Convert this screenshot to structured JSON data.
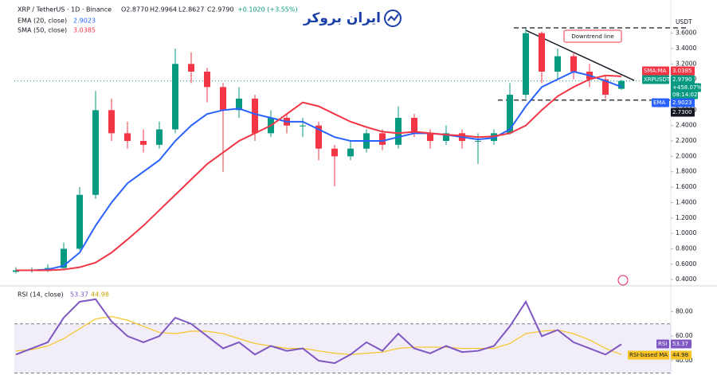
{
  "header": {
    "symbol": "XRP / TetherUS · 1D · Binance",
    "open": "O2.8770",
    "high": "H2.9964",
    "low": "L2.8627",
    "close": "C2.9790",
    "change": "+0.1020 (+3.55%)"
  },
  "logo": "ایران بروکر",
  "chart_data": [
    {
      "type": "candlestick",
      "currency": "USDT",
      "grid": false,
      "ylim": [
        0.36,
        3.72
      ],
      "yticks": [
        {
          "value": 0.4,
          "label": "0.4000"
        },
        {
          "value": 0.6,
          "label": "0.6000"
        },
        {
          "value": 0.8,
          "label": "0.8000"
        },
        {
          "value": 1.0,
          "label": "1.0000"
        },
        {
          "value": 1.2,
          "label": "1.2000"
        },
        {
          "value": 1.4,
          "label": "1.4000"
        },
        {
          "value": 1.6,
          "label": "1.6000"
        },
        {
          "value": 1.8,
          "label": "1.8000"
        },
        {
          "value": 2.0,
          "label": "2.0000"
        },
        {
          "value": 2.2,
          "label": "2.2000"
        },
        {
          "value": 2.4,
          "label": "2.4000"
        },
        {
          "value": 2.6,
          "label": "2.6000"
        },
        {
          "value": 2.8,
          "label": "2.8000"
        },
        {
          "value": 3.0,
          "label": "3.0000"
        },
        {
          "value": 3.2,
          "label": "3.2000"
        },
        {
          "value": 3.4,
          "label": "3.4000"
        },
        {
          "value": 3.6,
          "label": "3.6000"
        }
      ],
      "open": [
        0.5,
        0.52,
        0.52,
        0.55,
        0.8,
        1.5,
        2.6,
        2.3,
        2.2,
        2.15,
        2.35,
        3.2,
        3.1,
        2.9,
        2.6,
        2.75,
        2.3,
        2.5,
        2.4,
        2.4,
        2.1,
        2.0,
        2.1,
        2.3,
        2.15,
        2.5,
        2.3,
        2.2,
        2.3,
        2.2,
        2.2,
        2.3,
        2.8,
        3.6,
        3.1,
        3.3,
        3.1,
        3.0,
        2.877
      ],
      "high": [
        0.56,
        0.56,
        0.6,
        0.88,
        1.6,
        2.85,
        2.75,
        2.45,
        2.35,
        2.45,
        3.4,
        3.35,
        3.15,
        2.95,
        2.9,
        2.8,
        2.6,
        2.55,
        2.5,
        2.45,
        2.15,
        2.2,
        2.35,
        2.35,
        2.65,
        2.55,
        2.35,
        2.4,
        2.35,
        2.3,
        2.35,
        2.95,
        3.66,
        3.62,
        3.4,
        3.35,
        3.2,
        3.05,
        2.9964
      ],
      "low": [
        0.48,
        0.49,
        0.5,
        0.54,
        0.78,
        1.45,
        2.2,
        2.1,
        2.05,
        2.1,
        2.3,
        2.95,
        2.7,
        1.8,
        2.5,
        2.2,
        2.25,
        2.3,
        2.25,
        1.95,
        1.61,
        1.95,
        2.05,
        2.08,
        2.1,
        2.25,
        2.1,
        2.15,
        2.1,
        1.9,
        2.15,
        2.28,
        2.75,
        2.95,
        3.0,
        3.0,
        2.9,
        2.75,
        2.8627
      ],
      "close": [
        0.52,
        0.52,
        0.55,
        0.8,
        1.5,
        2.6,
        2.3,
        2.2,
        2.15,
        2.35,
        3.2,
        3.1,
        2.9,
        2.6,
        2.75,
        2.3,
        2.5,
        2.4,
        2.4,
        2.1,
        2.0,
        2.1,
        2.3,
        2.15,
        2.5,
        2.3,
        2.2,
        2.3,
        2.2,
        2.2,
        2.3,
        2.8,
        3.6,
        3.1,
        3.3,
        3.1,
        3.0,
        2.8,
        2.979
      ],
      "series": [
        {
          "name": "EMA (20, close)",
          "color": "#2962ff",
          "values": [
            0.52,
            0.52,
            0.53,
            0.58,
            0.75,
            1.1,
            1.4,
            1.65,
            1.8,
            1.95,
            2.2,
            2.4,
            2.55,
            2.6,
            2.62,
            2.55,
            2.5,
            2.45,
            2.45,
            2.35,
            2.25,
            2.2,
            2.2,
            2.2,
            2.25,
            2.3,
            2.3,
            2.28,
            2.25,
            2.22,
            2.24,
            2.35,
            2.65,
            2.9,
            3.0,
            3.1,
            3.05,
            2.98,
            2.9023
          ]
        },
        {
          "name": "SMA (50, close)",
          "color": "#f23645",
          "values": [
            0.52,
            0.52,
            0.52,
            0.53,
            0.56,
            0.62,
            0.75,
            0.92,
            1.1,
            1.3,
            1.5,
            1.7,
            1.9,
            2.05,
            2.2,
            2.3,
            2.4,
            2.55,
            2.7,
            2.65,
            2.55,
            2.45,
            2.38,
            2.32,
            2.3,
            2.32,
            2.3,
            2.28,
            2.27,
            2.25,
            2.26,
            2.3,
            2.4,
            2.6,
            2.78,
            2.9,
            3.0,
            3.05,
            3.0385
          ]
        }
      ],
      "annotation": "Downtrend line",
      "support": {
        "value": 2.73,
        "label": "2.7300"
      },
      "tags": {
        "sma": "SMA:MA",
        "symbol": "XRPUSDT",
        "last": "2.9790",
        "pct": "+458.07%",
        "timer": "08:14:02",
        "ema": "EMA"
      }
    },
    {
      "type": "line",
      "title": "RSI (14, close)",
      "ylim": [
        29,
        99
      ],
      "yticks": [
        {
          "value": 40,
          "label": "40.00"
        },
        {
          "value": 60,
          "label": "60.00"
        },
        {
          "value": 80,
          "label": "80.00"
        }
      ],
      "band": [
        30,
        70
      ],
      "series": [
        {
          "name": "RSI",
          "color": "#7e57c2",
          "values": [
            45,
            50,
            55,
            75,
            88,
            90,
            72,
            60,
            55,
            60,
            75,
            70,
            60,
            50,
            55,
            45,
            52,
            48,
            50,
            40,
            38,
            45,
            55,
            48,
            62,
            50,
            46,
            52,
            47,
            48,
            52,
            68,
            88,
            60,
            65,
            55,
            50,
            45,
            53.37
          ]
        },
        {
          "name": "RSI-based MA",
          "color": "#f7c525",
          "values": [
            48,
            49,
            52,
            58,
            66,
            74,
            76,
            73,
            68,
            63,
            62,
            64,
            64,
            62,
            58,
            54,
            52,
            50,
            50,
            48,
            46,
            45,
            46,
            47,
            50,
            51,
            51,
            51,
            50,
            50,
            50,
            54,
            62,
            64,
            65,
            62,
            57,
            50,
            44.98
          ]
        }
      ]
    }
  ]
}
